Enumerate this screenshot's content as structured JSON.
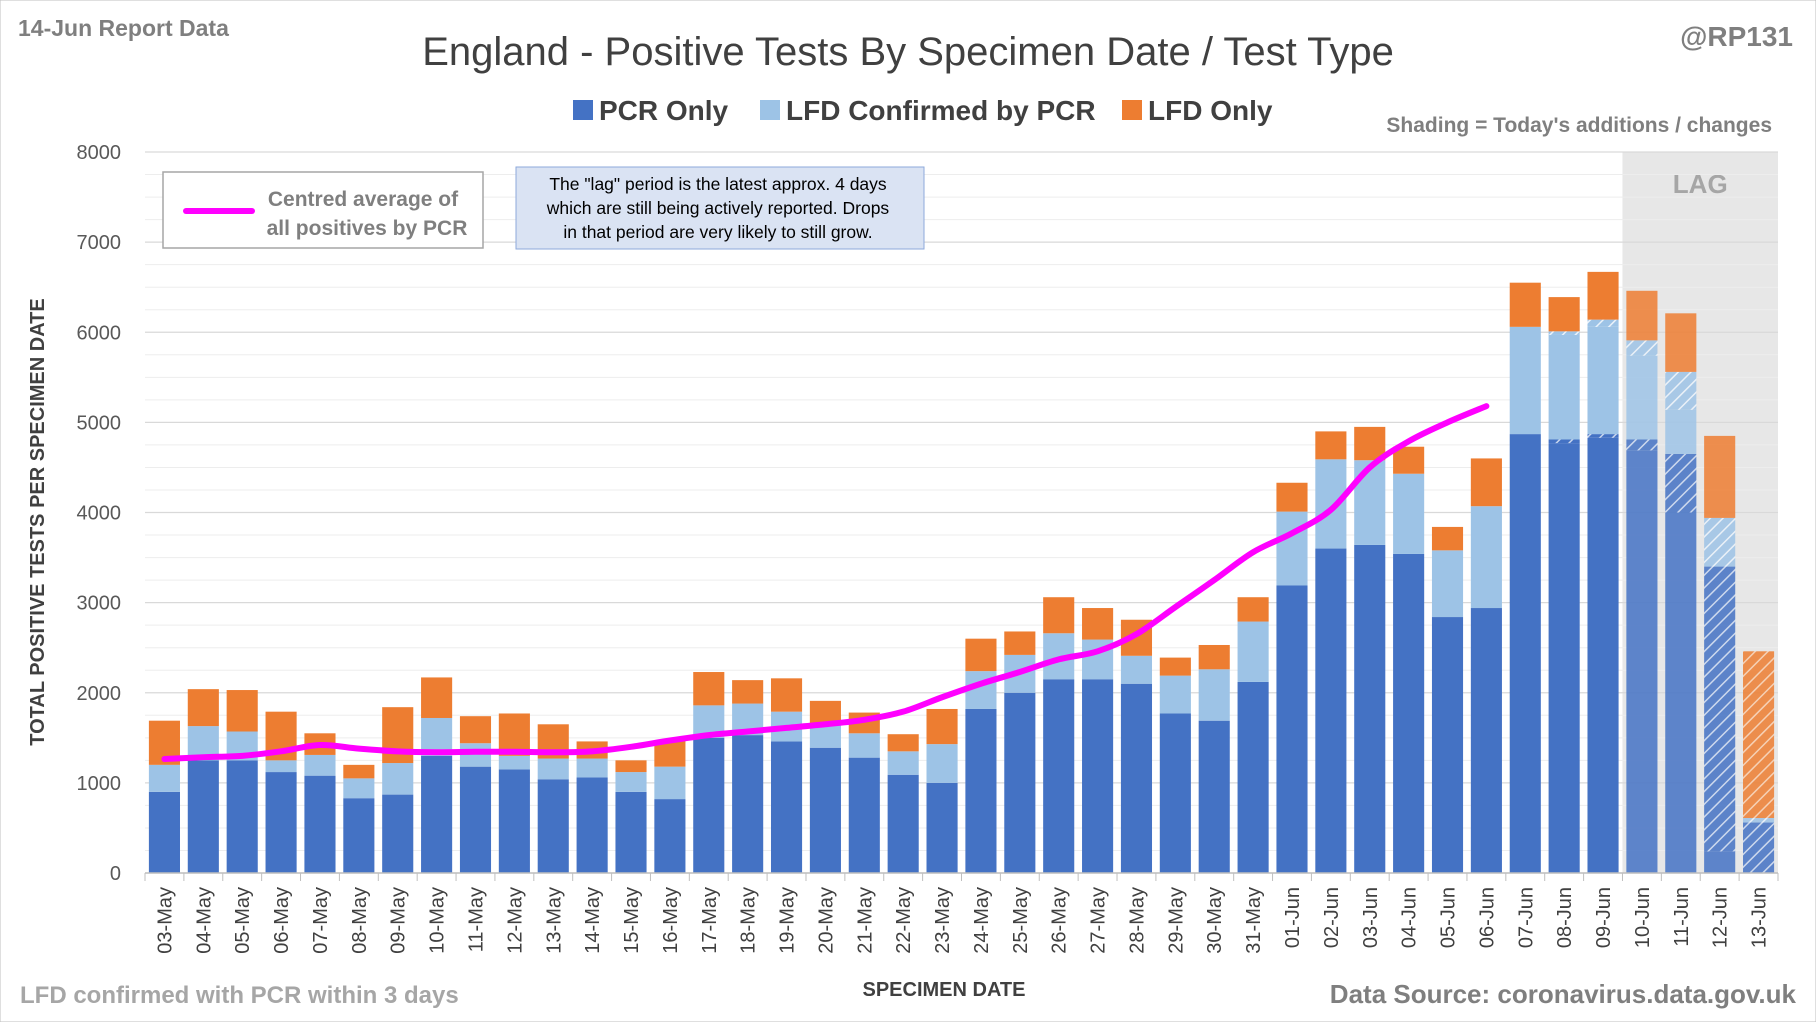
{
  "header": {
    "report_label": "14-Jun Report Data",
    "handle": "@RP131",
    "shading_note": "Shading = Today's additions / changes"
  },
  "footer": {
    "left_note": "LFD confirmed with PCR within 3 days",
    "source": "Data Source: coronavirus.data.gov.uk"
  },
  "annotations": {
    "lag_label": "LAG",
    "lag_note": [
      "The \"lag\" period is the latest approx. 4 days",
      "which are still being actively reported.  Drops",
      "in that period are very likely to still grow."
    ],
    "line_legend": [
      "Centred average of",
      "all positives by PCR"
    ]
  },
  "colors": {
    "pcr": "#4472C4",
    "lfd_confirmed": "#9DC3E6",
    "lfd_only": "#ED7D31",
    "avg_line": "#FF00FF",
    "lag_shade": "#E7E7E7",
    "grid": "#D9D9D9",
    "note_box": "#DAE3F3"
  },
  "chart_data": {
    "type": "bar",
    "stacked": true,
    "title": "England - Positive Tests By Specimen Date / Test Type",
    "xlabel": "SPECIMEN DATE",
    "ylabel": "TOTAL POSITIVE TESTS PER SPECIMEN DATE",
    "ylim": [
      0,
      8000
    ],
    "yticks": [
      0,
      1000,
      2000,
      3000,
      4000,
      5000,
      6000,
      7000,
      8000
    ],
    "grid": true,
    "legend_position": "top",
    "categories": [
      "03-May",
      "04-May",
      "05-May",
      "06-May",
      "07-May",
      "08-May",
      "09-May",
      "10-May",
      "11-May",
      "12-May",
      "13-May",
      "14-May",
      "15-May",
      "16-May",
      "17-May",
      "18-May",
      "19-May",
      "20-May",
      "21-May",
      "22-May",
      "23-May",
      "24-May",
      "25-May",
      "26-May",
      "27-May",
      "28-May",
      "29-May",
      "30-May",
      "31-May",
      "01-Jun",
      "02-Jun",
      "03-Jun",
      "04-Jun",
      "05-Jun",
      "06-Jun",
      "07-Jun",
      "08-Jun",
      "09-Jun",
      "10-Jun",
      "11-Jun",
      "12-Jun",
      "13-Jun"
    ],
    "series": [
      {
        "name": "PCR Only",
        "values": [
          900,
          1250,
          1250,
          1120,
          1080,
          830,
          870,
          1300,
          1180,
          1150,
          1040,
          1060,
          900,
          820,
          1500,
          1530,
          1460,
          1390,
          1280,
          1090,
          1000,
          1820,
          2000,
          2150,
          2150,
          2100,
          1770,
          1690,
          2120,
          3190,
          3600,
          3640,
          3540,
          2840,
          2940,
          4870,
          4810,
          4870,
          4810,
          4650,
          3400,
          560
        ]
      },
      {
        "name": "LFD Confirmed by PCR",
        "values": [
          300,
          380,
          320,
          130,
          230,
          220,
          350,
          420,
          260,
          150,
          230,
          210,
          220,
          360,
          360,
          350,
          330,
          270,
          270,
          260,
          430,
          420,
          420,
          510,
          440,
          310,
          420,
          570,
          670,
          820,
          990,
          940,
          890,
          740,
          1130,
          1190,
          1200,
          1270,
          1100,
          910,
          540,
          50
        ]
      },
      {
        "name": "LFD Only",
        "values": [
          490,
          410,
          460,
          540,
          240,
          150,
          620,
          450,
          300,
          470,
          380,
          190,
          130,
          290,
          370,
          260,
          370,
          250,
          230,
          190,
          390,
          360,
          260,
          400,
          350,
          400,
          200,
          270,
          270,
          320,
          310,
          370,
          300,
          260,
          530,
          490,
          380,
          530,
          550,
          650,
          910,
          1850
        ]
      }
    ],
    "lag_start_index": 38,
    "hatched_additions": {
      "pcr": [
        0,
        0,
        0,
        0,
        0,
        0,
        0,
        0,
        0,
        0,
        0,
        0,
        0,
        0,
        0,
        0,
        0,
        0,
        0,
        0,
        0,
        0,
        0,
        0,
        0,
        0,
        0,
        0,
        0,
        0,
        0,
        0,
        0,
        0,
        0,
        0,
        40,
        40,
        120,
        650,
        3160,
        560
      ],
      "lfd_confirmed": [
        0,
        0,
        0,
        0,
        0,
        0,
        0,
        0,
        0,
        0,
        0,
        0,
        0,
        0,
        0,
        0,
        0,
        0,
        0,
        0,
        0,
        0,
        0,
        0,
        0,
        0,
        0,
        0,
        0,
        0,
        0,
        0,
        0,
        0,
        0,
        0,
        40,
        80,
        170,
        420,
        540,
        50
      ],
      "lfd_only": [
        0,
        0,
        0,
        0,
        0,
        0,
        0,
        0,
        0,
        0,
        0,
        0,
        0,
        0,
        0,
        0,
        0,
        0,
        0,
        0,
        0,
        0,
        0,
        0,
        0,
        0,
        0,
        0,
        0,
        0,
        0,
        0,
        0,
        0,
        0,
        0,
        0,
        0,
        0,
        0,
        0,
        1850
      ]
    },
    "avg_line": {
      "name": "Centred average of all positives by PCR",
      "values": [
        1265,
        1285,
        1300,
        1350,
        1420,
        1380,
        1350,
        1340,
        1345,
        1345,
        1340,
        1350,
        1400,
        1470,
        1530,
        1570,
        1610,
        1650,
        1700,
        1790,
        1950,
        2100,
        2230,
        2370,
        2460,
        2650,
        2950,
        3250,
        3560,
        3770,
        4030,
        4500,
        4790,
        5000,
        5180
      ]
    }
  }
}
